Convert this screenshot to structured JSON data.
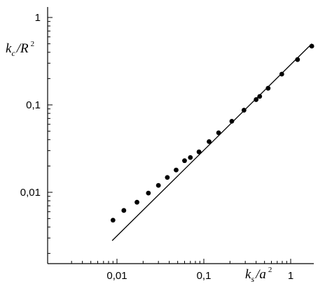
{
  "chart_data": {
    "type": "scatter",
    "x_scale": "log",
    "y_scale": "log",
    "xlim": [
      0.0025,
      2.2
    ],
    "ylim": [
      0.0018,
      1.25
    ],
    "grid": false,
    "xlabel_parts": {
      "k": "k",
      "sub": "s",
      "slash": "/",
      "a": "a",
      "sup": "2"
    },
    "ylabel_parts": {
      "k": "k",
      "sub": "c",
      "slash": "/",
      "R": "R",
      "sup": "2"
    },
    "x_tick_labels": [
      {
        "value": 0.01,
        "label": "0,01"
      },
      {
        "value": 0.1,
        "label": "0,1"
      },
      {
        "value": 1,
        "label": "1"
      }
    ],
    "y_tick_labels": [
      {
        "value": 0.01,
        "label": "0,01"
      },
      {
        "value": 0.1,
        "label": "0,1"
      },
      {
        "value": 1,
        "label": "1"
      }
    ],
    "series": [
      {
        "type": "scatter",
        "x": [
          0.009,
          0.012,
          0.017,
          0.023,
          0.03,
          0.038,
          0.048,
          0.06,
          0.07,
          0.088,
          0.115,
          0.148,
          0.21,
          0.29,
          0.4,
          0.44,
          0.55,
          0.79,
          1.2,
          1.75
        ],
        "y": [
          0.0048,
          0.0062,
          0.0077,
          0.0098,
          0.012,
          0.0148,
          0.018,
          0.023,
          0.025,
          0.029,
          0.038,
          0.048,
          0.065,
          0.087,
          0.115,
          0.125,
          0.155,
          0.225,
          0.33,
          0.47
        ]
      },
      {
        "type": "line",
        "x": [
          0.0088,
          1.75
        ],
        "y": [
          0.0028,
          0.5
        ]
      }
    ]
  }
}
